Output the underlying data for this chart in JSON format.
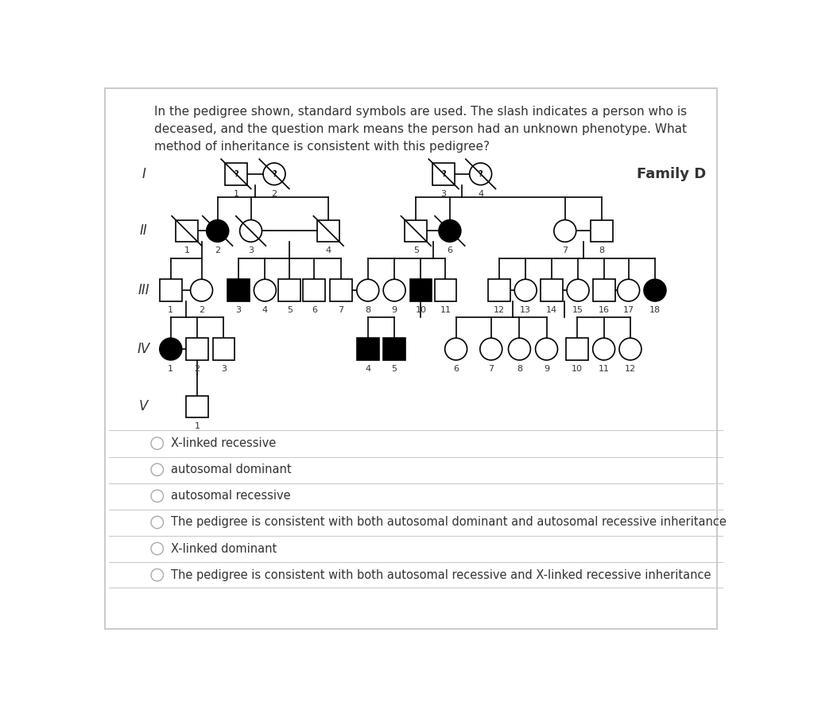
{
  "title_text": "In the pedigree shown, standard symbols are used. The slash indicates a person who is\ndeceased, and the question mark means the person had an unknown phenotype. What\nmethod of inheritance is consistent with this pedigree?",
  "family_label": "Family D",
  "generation_labels": [
    "I",
    "II",
    "III",
    "IV",
    "V"
  ],
  "options": [
    "X-linked recessive",
    "autosomal dominant",
    "autosomal recessive",
    "The pedigree is consistent with both autosomal dominant and autosomal recessive inheritance",
    "X-linked dominant",
    "The pedigree is consistent with both autosomal recessive and X-linked recessive inheritance"
  ],
  "bg_color": "#ffffff",
  "border_color": "#cccccc",
  "text_color": "#333333",
  "symbol_line_color": "#000000",
  "filled_color": "#000000",
  "unfilled_color": "#ffffff"
}
